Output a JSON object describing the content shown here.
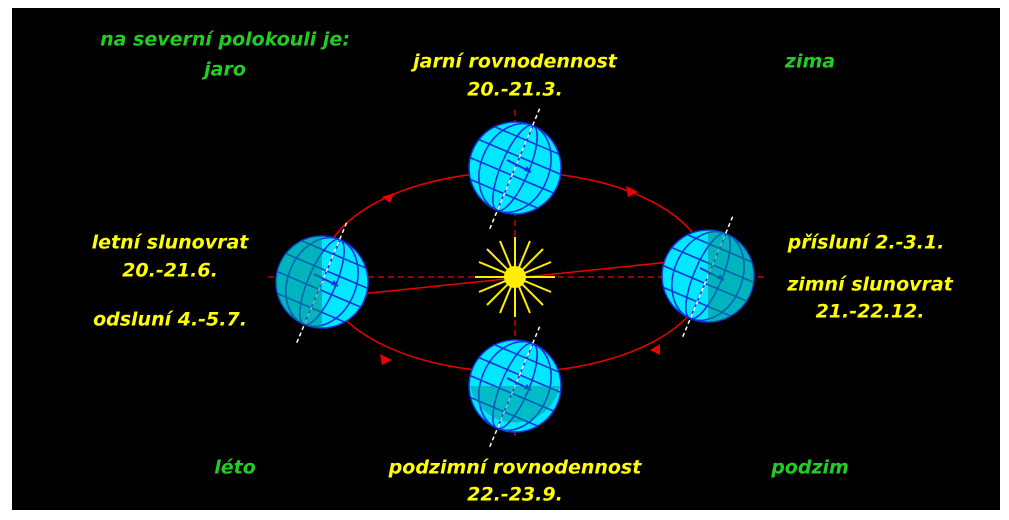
{
  "heading": "na severní polokouli je:",
  "seasons": {
    "spring": "jaro",
    "winter": "zima",
    "summer": "léto",
    "autumn": "podzim"
  },
  "positions": {
    "top": {
      "label": "jarní rovnodennost",
      "date": "20.-21.3."
    },
    "left": {
      "label": "letní slunovrat",
      "date": "20.-21.6."
    },
    "right": {
      "label": "zimní slunovrat",
      "date": "21.-22.12."
    },
    "bottom": {
      "label": "podzimní rovnodennost",
      "date": "22.-23.9."
    }
  },
  "aphelion": "odsluní 4.-5.7.",
  "perihelion": "přísluní 2.-3.1."
}
